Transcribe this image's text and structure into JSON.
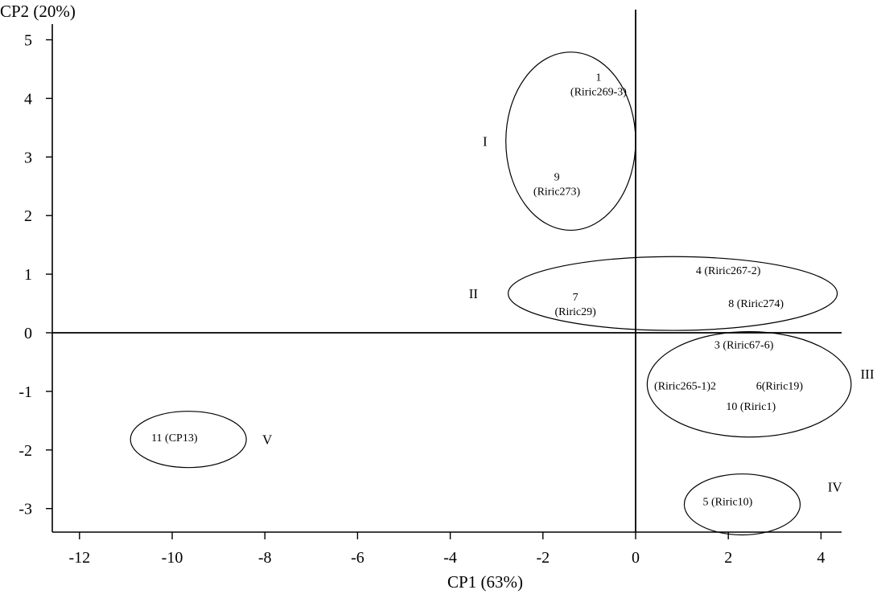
{
  "chart_data": {
    "type": "scatter",
    "xlabel": "CP1 (63%)",
    "ylabel": "CP2 (20%)",
    "xlim": [
      -12.5,
      4.5
    ],
    "ylim": [
      -3.4,
      5.5
    ],
    "xticks": [
      -12,
      -10,
      -8,
      -6,
      -4,
      -2,
      0,
      2,
      4
    ],
    "xtick_labels": [
      "-12",
      "-10",
      "-8",
      "-6",
      "-4",
      "-2",
      "0",
      "2",
      "4"
    ],
    "yticks": [
      -3,
      -2,
      -1,
      0,
      1,
      2,
      3,
      4,
      5
    ],
    "ytick_labels": [
      "-3",
      "-2",
      "-1",
      "0",
      "1",
      "2",
      "3",
      "4",
      "5"
    ],
    "reference_lines": {
      "x": 0,
      "y": 0
    },
    "grid": false,
    "points": [
      {
        "x": -0.8,
        "y": 4.3,
        "lines": [
          "1",
          "(Riric269-3)"
        ],
        "anchor": "middle"
      },
      {
        "x": -1.7,
        "y": 2.6,
        "lines": [
          "9",
          "(Riric273)"
        ],
        "anchor": "middle"
      },
      {
        "x": -1.3,
        "y": 0.55,
        "lines": [
          "7",
          "(Riric29)"
        ],
        "anchor": "middle"
      },
      {
        "x": 1.3,
        "y": 1.0,
        "lines": [
          "4 (Riric267-2)"
        ],
        "anchor": "start"
      },
      {
        "x": 2.0,
        "y": 0.44,
        "lines": [
          "8 (Riric274)"
        ],
        "anchor": "start"
      },
      {
        "x": 1.7,
        "y": -0.27,
        "lines": [
          "3 (Riric67-6)"
        ],
        "anchor": "start"
      },
      {
        "x": 0.4,
        "y": -0.97,
        "lines": [
          "(Riric265-1)2"
        ],
        "anchor": "start"
      },
      {
        "x": 2.6,
        "y": -0.97,
        "lines": [
          "6(Riric19)"
        ],
        "anchor": "start"
      },
      {
        "x": 1.95,
        "y": -1.32,
        "lines": [
          "10 (Riric1)"
        ],
        "anchor": "start"
      },
      {
        "x": 1.45,
        "y": -2.94,
        "lines": [
          "5 (Riric10)"
        ],
        "anchor": "start"
      },
      {
        "x": -10.45,
        "y": -1.85,
        "lines": [
          "11 (CP13)"
        ],
        "anchor": "start"
      }
    ],
    "clusters": [
      {
        "label": "I",
        "cx": -1.4,
        "cy": 3.27,
        "rx": 1.4,
        "ry": 1.52,
        "label_x": -3.25,
        "label_y": 3.27
      },
      {
        "label": "II",
        "cx": 0.8,
        "cy": 0.67,
        "rx": 3.55,
        "ry": 0.63,
        "label_x": -3.5,
        "label_y": 0.67
      },
      {
        "label": "III",
        "cx": 2.45,
        "cy": -0.88,
        "rx": 2.2,
        "ry": 0.9,
        "label_x": 5.0,
        "label_y": -0.7
      },
      {
        "label": "IV",
        "cx": 2.3,
        "cy": -2.93,
        "rx": 1.25,
        "ry": 0.52,
        "label_x": 4.3,
        "label_y": -2.63
      },
      {
        "label": "V",
        "cx": -9.65,
        "cy": -1.82,
        "rx": 1.25,
        "ry": 0.48,
        "label_x": -7.95,
        "label_y": -1.82
      }
    ]
  }
}
